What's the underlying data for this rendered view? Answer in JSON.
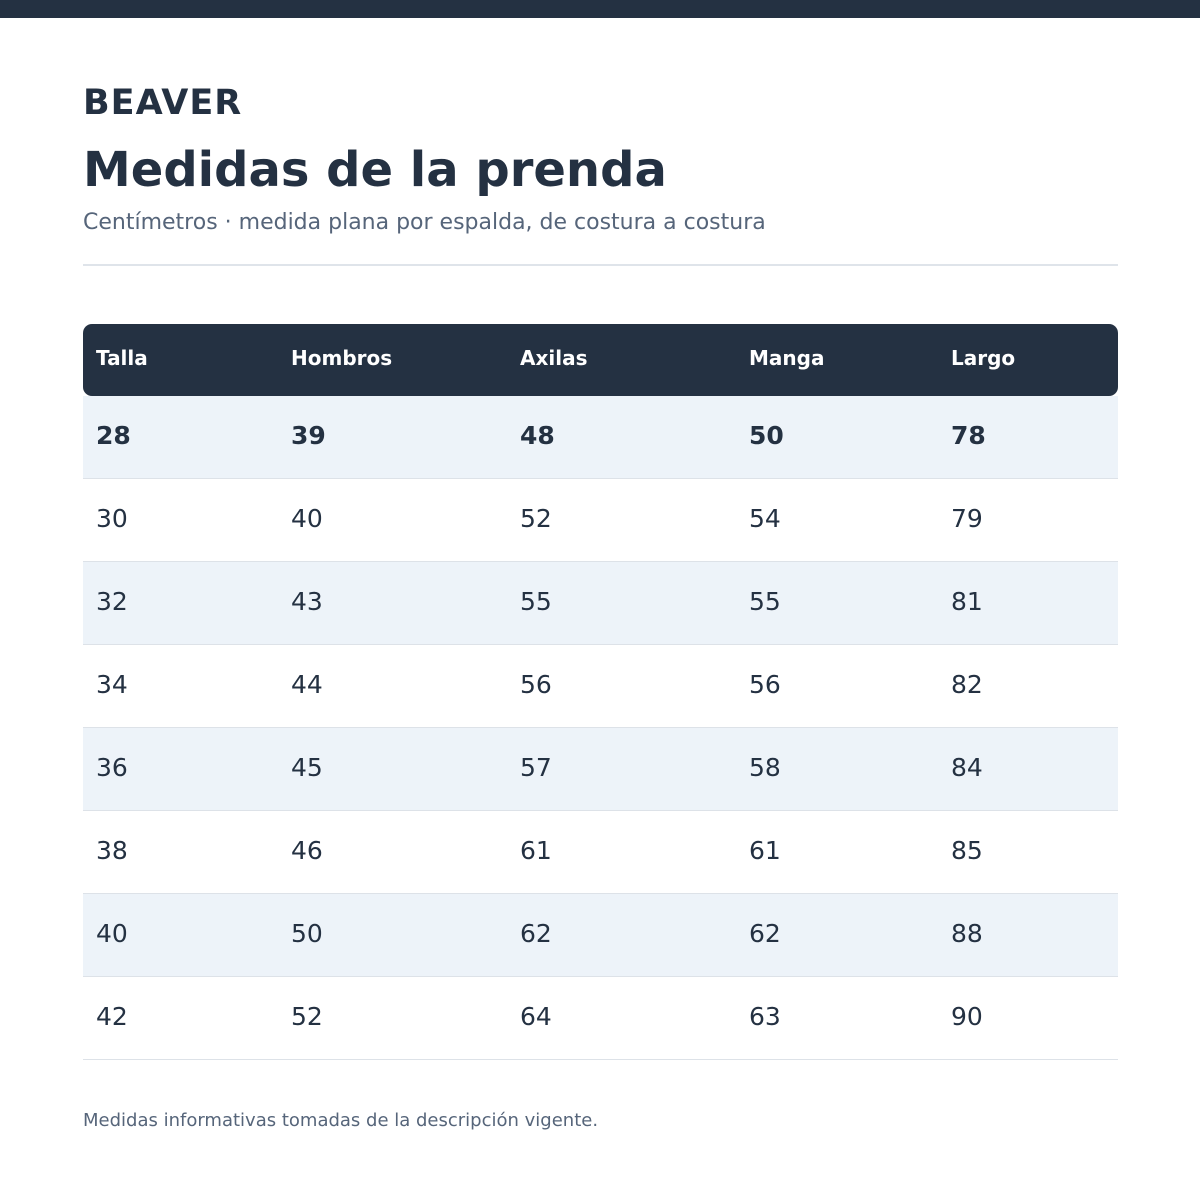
{
  "brand": "BEAVER",
  "title": "Medidas de la prenda",
  "subtitle": "Centímetros · medida plana por espalda, de costura a costura",
  "table": {
    "headers": [
      "Talla",
      "Hombros",
      "Axilas",
      "Manga",
      "Largo"
    ],
    "rows": [
      [
        "28",
        "39",
        "48",
        "50",
        "78"
      ],
      [
        "30",
        "40",
        "52",
        "54",
        "79"
      ],
      [
        "32",
        "43",
        "55",
        "55",
        "81"
      ],
      [
        "34",
        "44",
        "56",
        "56",
        "82"
      ],
      [
        "36",
        "45",
        "57",
        "58",
        "84"
      ],
      [
        "38",
        "46",
        "61",
        "61",
        "85"
      ],
      [
        "40",
        "50",
        "62",
        "62",
        "88"
      ],
      [
        "42",
        "52",
        "64",
        "63",
        "90"
      ]
    ]
  },
  "footnote": "Medidas informativas tomadas de la descripción vigente.",
  "colors": {
    "primary": "#243142",
    "muted": "#56657a",
    "row_alt": "#edf3f9"
  }
}
